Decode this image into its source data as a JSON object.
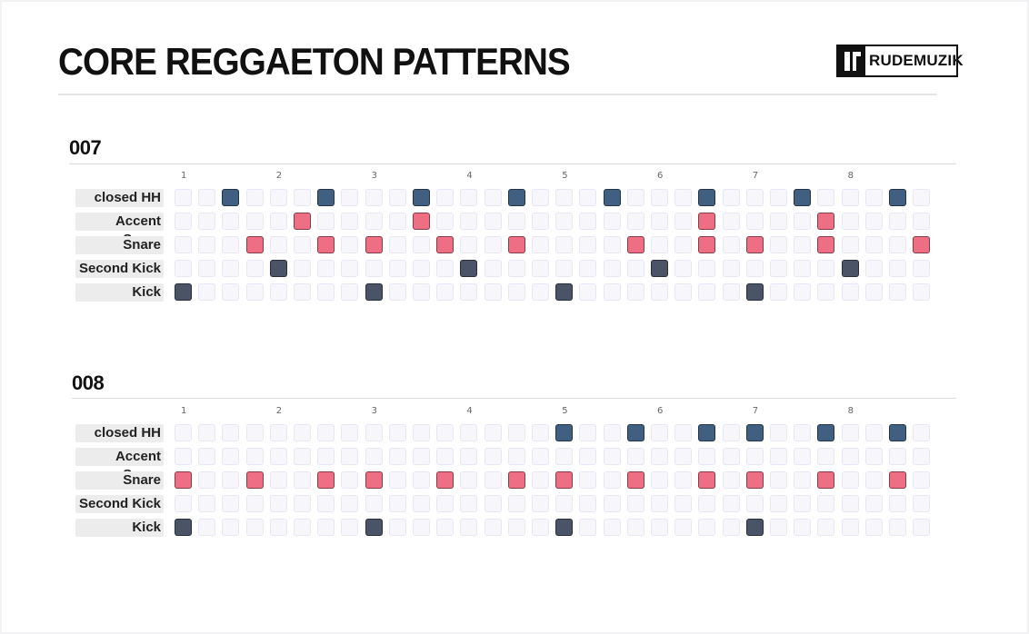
{
  "header": {
    "title": "CORE REGGAETON PATTERNS",
    "logo_text": "RUDEMUZIK"
  },
  "colors": {
    "hihat": "#415f80",
    "snare": "#ee6f83",
    "kick": "#4b5466",
    "step_off": "#f7f6fb"
  },
  "beat_numbers": [
    "1",
    "2",
    "3",
    "4",
    "5",
    "6",
    "7",
    "8"
  ],
  "patterns": [
    {
      "name": "007",
      "rows": [
        {
          "label": "closed HH",
          "color": "hihat",
          "steps": [
            2,
            6,
            10,
            14,
            18,
            22,
            26,
            30
          ]
        },
        {
          "label": "Accent Snare",
          "color": "snare",
          "steps": [
            5,
            10,
            22,
            27
          ]
        },
        {
          "label": "Snare",
          "color": "snare",
          "steps": [
            3,
            6,
            8,
            11,
            14,
            19,
            22,
            24,
            27,
            31
          ]
        },
        {
          "label": "Second Kick",
          "color": "kick",
          "steps": [
            4,
            12,
            20,
            28
          ]
        },
        {
          "label": "Kick",
          "color": "kick",
          "steps": [
            0,
            8,
            16,
            24
          ]
        }
      ]
    },
    {
      "name": "008",
      "rows": [
        {
          "label": "closed HH",
          "color": "hihat",
          "steps": [
            16,
            19,
            22,
            24,
            27,
            30
          ]
        },
        {
          "label": "Accent Snare",
          "color": "snare",
          "steps": []
        },
        {
          "label": "Snare",
          "color": "snare",
          "steps": [
            0,
            3,
            6,
            8,
            11,
            14,
            16,
            19,
            22,
            24,
            27,
            30
          ]
        },
        {
          "label": "Second Kick",
          "color": "kick",
          "steps": []
        },
        {
          "label": "Kick",
          "color": "kick",
          "steps": [
            0,
            8,
            16,
            24
          ]
        }
      ]
    }
  ]
}
